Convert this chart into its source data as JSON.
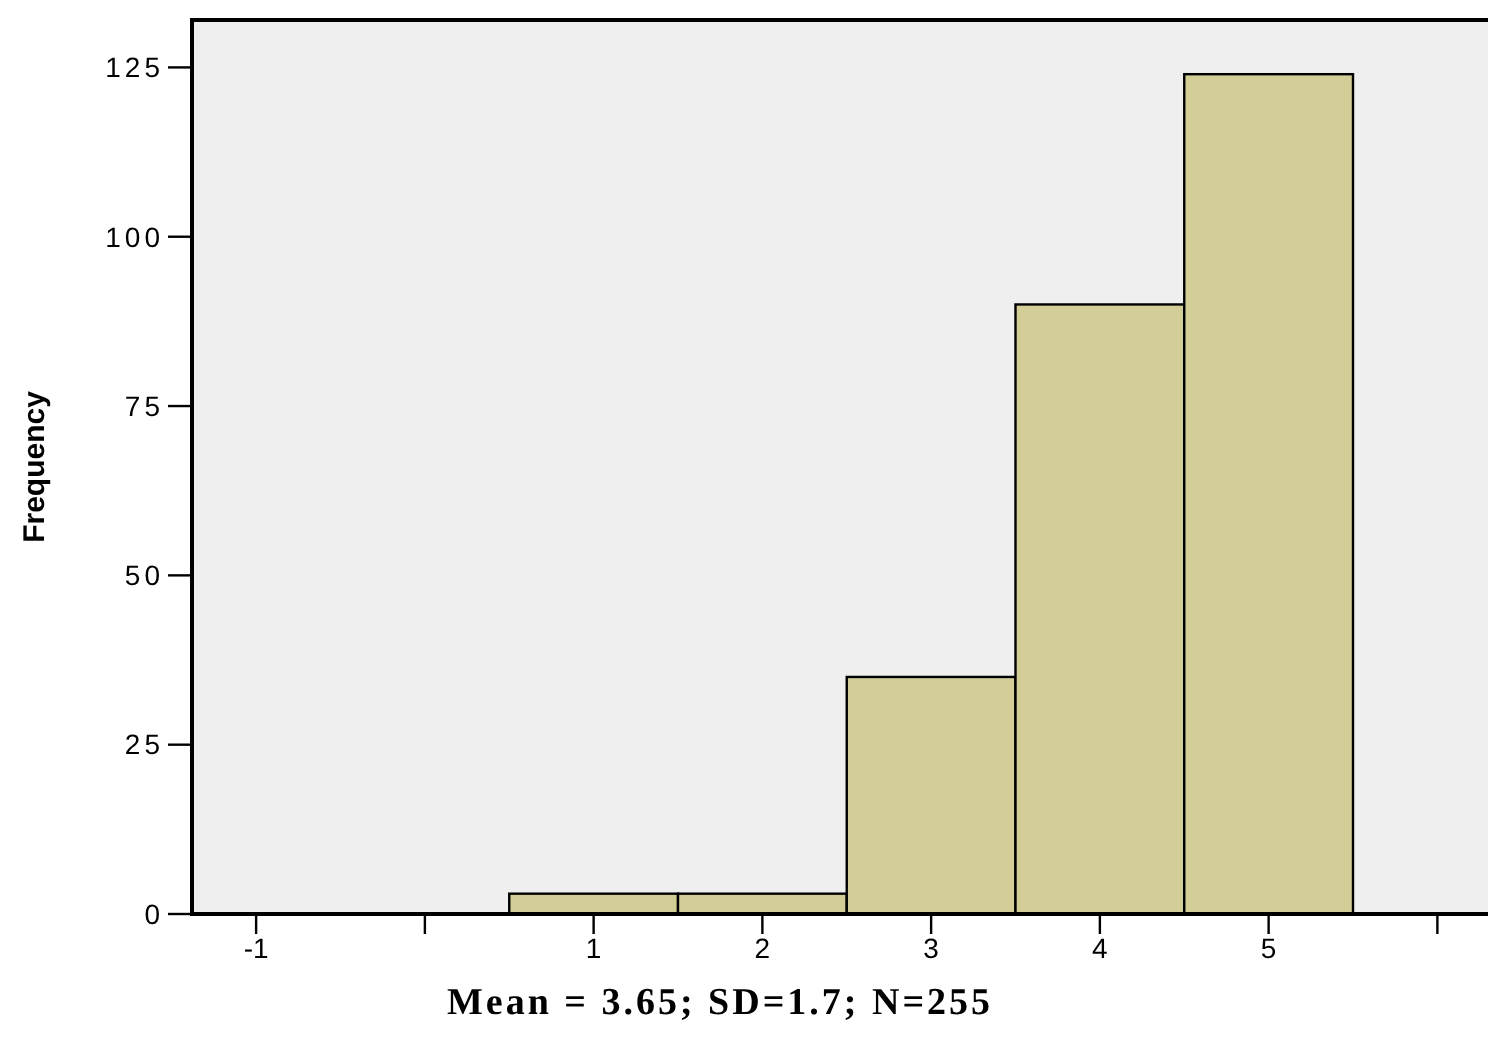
{
  "chart_data": {
    "type": "histogram",
    "ylabel": "Frequency",
    "bins": [
      0.5,
      1.5,
      2.5,
      3.5,
      4.5,
      5.5
    ],
    "values": [
      3,
      3,
      35,
      90,
      124
    ],
    "color": "#d3cd98",
    "xlim": [
      -1.38,
      6.3
    ],
    "xticks": [
      -1,
      {
        "value": 0,
        "label": null
      },
      1,
      2,
      3,
      4,
      5,
      {
        "value": 6,
        "label": null
      }
    ],
    "ylim": [
      0,
      132
    ],
    "yticks": [
      0,
      25,
      50,
      75,
      100,
      125
    ],
    "annotations": [
      "Mean = 3.65; SD=1.7; N=255"
    ]
  }
}
